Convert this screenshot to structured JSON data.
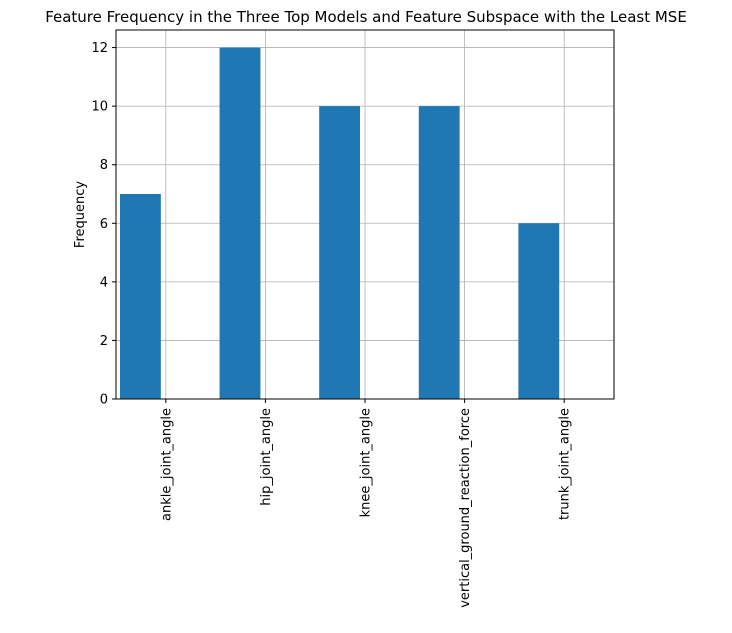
{
  "chart_data": {
    "type": "bar",
    "title": "Feature Frequency in the Three Top Models and Feature Subspace with the Least MSE",
    "xlabel": "",
    "ylabel": "Frequency",
    "categories": [
      "ankle_joint_angle",
      "hip_joint_angle",
      "knee_joint_angle",
      "vertical_ground_reaction_force",
      "trunk_joint_angle"
    ],
    "values": [
      7,
      12,
      10,
      10,
      6
    ],
    "ylim": [
      0,
      12.6
    ],
    "yticks": [
      0,
      2,
      4,
      6,
      8,
      10,
      12
    ],
    "grid": true,
    "bar_color": "#1f77b4",
    "grid_color": "#b0b0b0",
    "axis_color": "#000000"
  }
}
